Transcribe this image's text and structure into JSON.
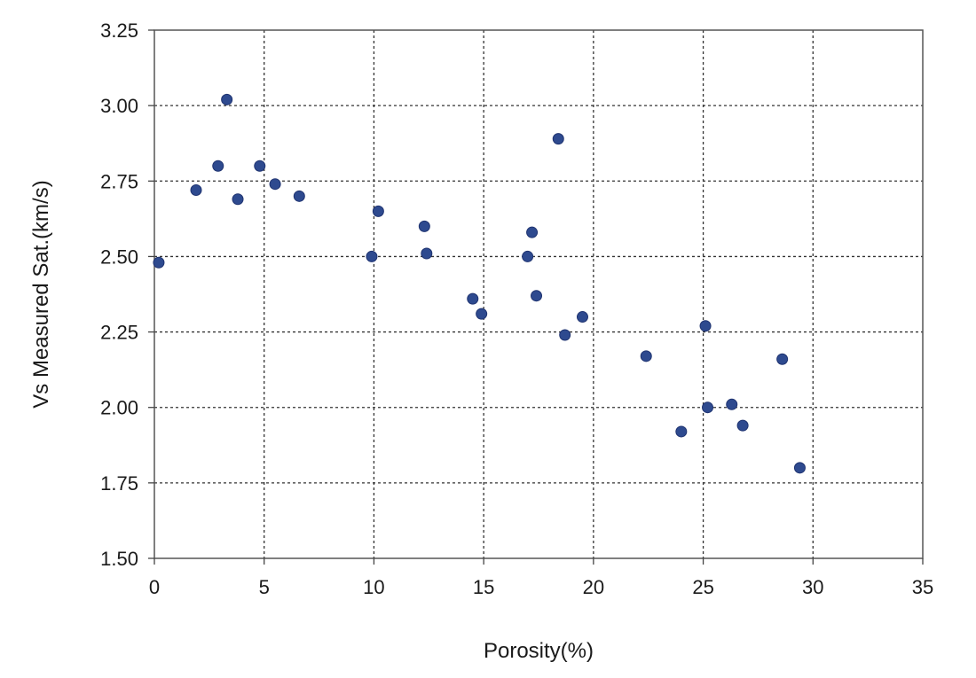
{
  "chart_data": {
    "type": "scatter",
    "title": "",
    "xlabel": "Porosity(%)",
    "ylabel": "Vs Measured Sat.(km/s)",
    "xlim": [
      0,
      35
    ],
    "ylim": [
      1.5,
      3.25
    ],
    "x_ticks": [
      "0",
      "5",
      "10",
      "15",
      "20",
      "25",
      "30",
      "35"
    ],
    "y_ticks": [
      "1.50",
      "1.75",
      "2.00",
      "2.25",
      "2.50",
      "2.75",
      "3.00",
      "3.25"
    ],
    "grid": true,
    "grid_style": "dotted",
    "legend": "none",
    "marker_color": "#2e4a8f",
    "series": [
      {
        "points": [
          [
            0.2,
            2.48
          ],
          [
            1.9,
            2.72
          ],
          [
            2.9,
            2.8
          ],
          [
            3.3,
            3.02
          ],
          [
            3.8,
            2.69
          ],
          [
            4.8,
            2.8
          ],
          [
            5.5,
            2.74
          ],
          [
            6.6,
            2.7
          ],
          [
            9.9,
            2.5
          ],
          [
            10.2,
            2.65
          ],
          [
            12.3,
            2.6
          ],
          [
            12.4,
            2.51
          ],
          [
            14.5,
            2.36
          ],
          [
            14.9,
            2.31
          ],
          [
            17.0,
            2.5
          ],
          [
            17.2,
            2.58
          ],
          [
            17.4,
            2.37
          ],
          [
            18.4,
            2.89
          ],
          [
            18.7,
            2.24
          ],
          [
            19.5,
            2.3
          ],
          [
            22.4,
            2.17
          ],
          [
            24.0,
            1.92
          ],
          [
            25.1,
            2.27
          ],
          [
            25.2,
            2.0
          ],
          [
            26.3,
            2.01
          ],
          [
            26.8,
            1.94
          ],
          [
            28.6,
            2.16
          ],
          [
            29.4,
            1.8
          ]
        ]
      }
    ]
  }
}
